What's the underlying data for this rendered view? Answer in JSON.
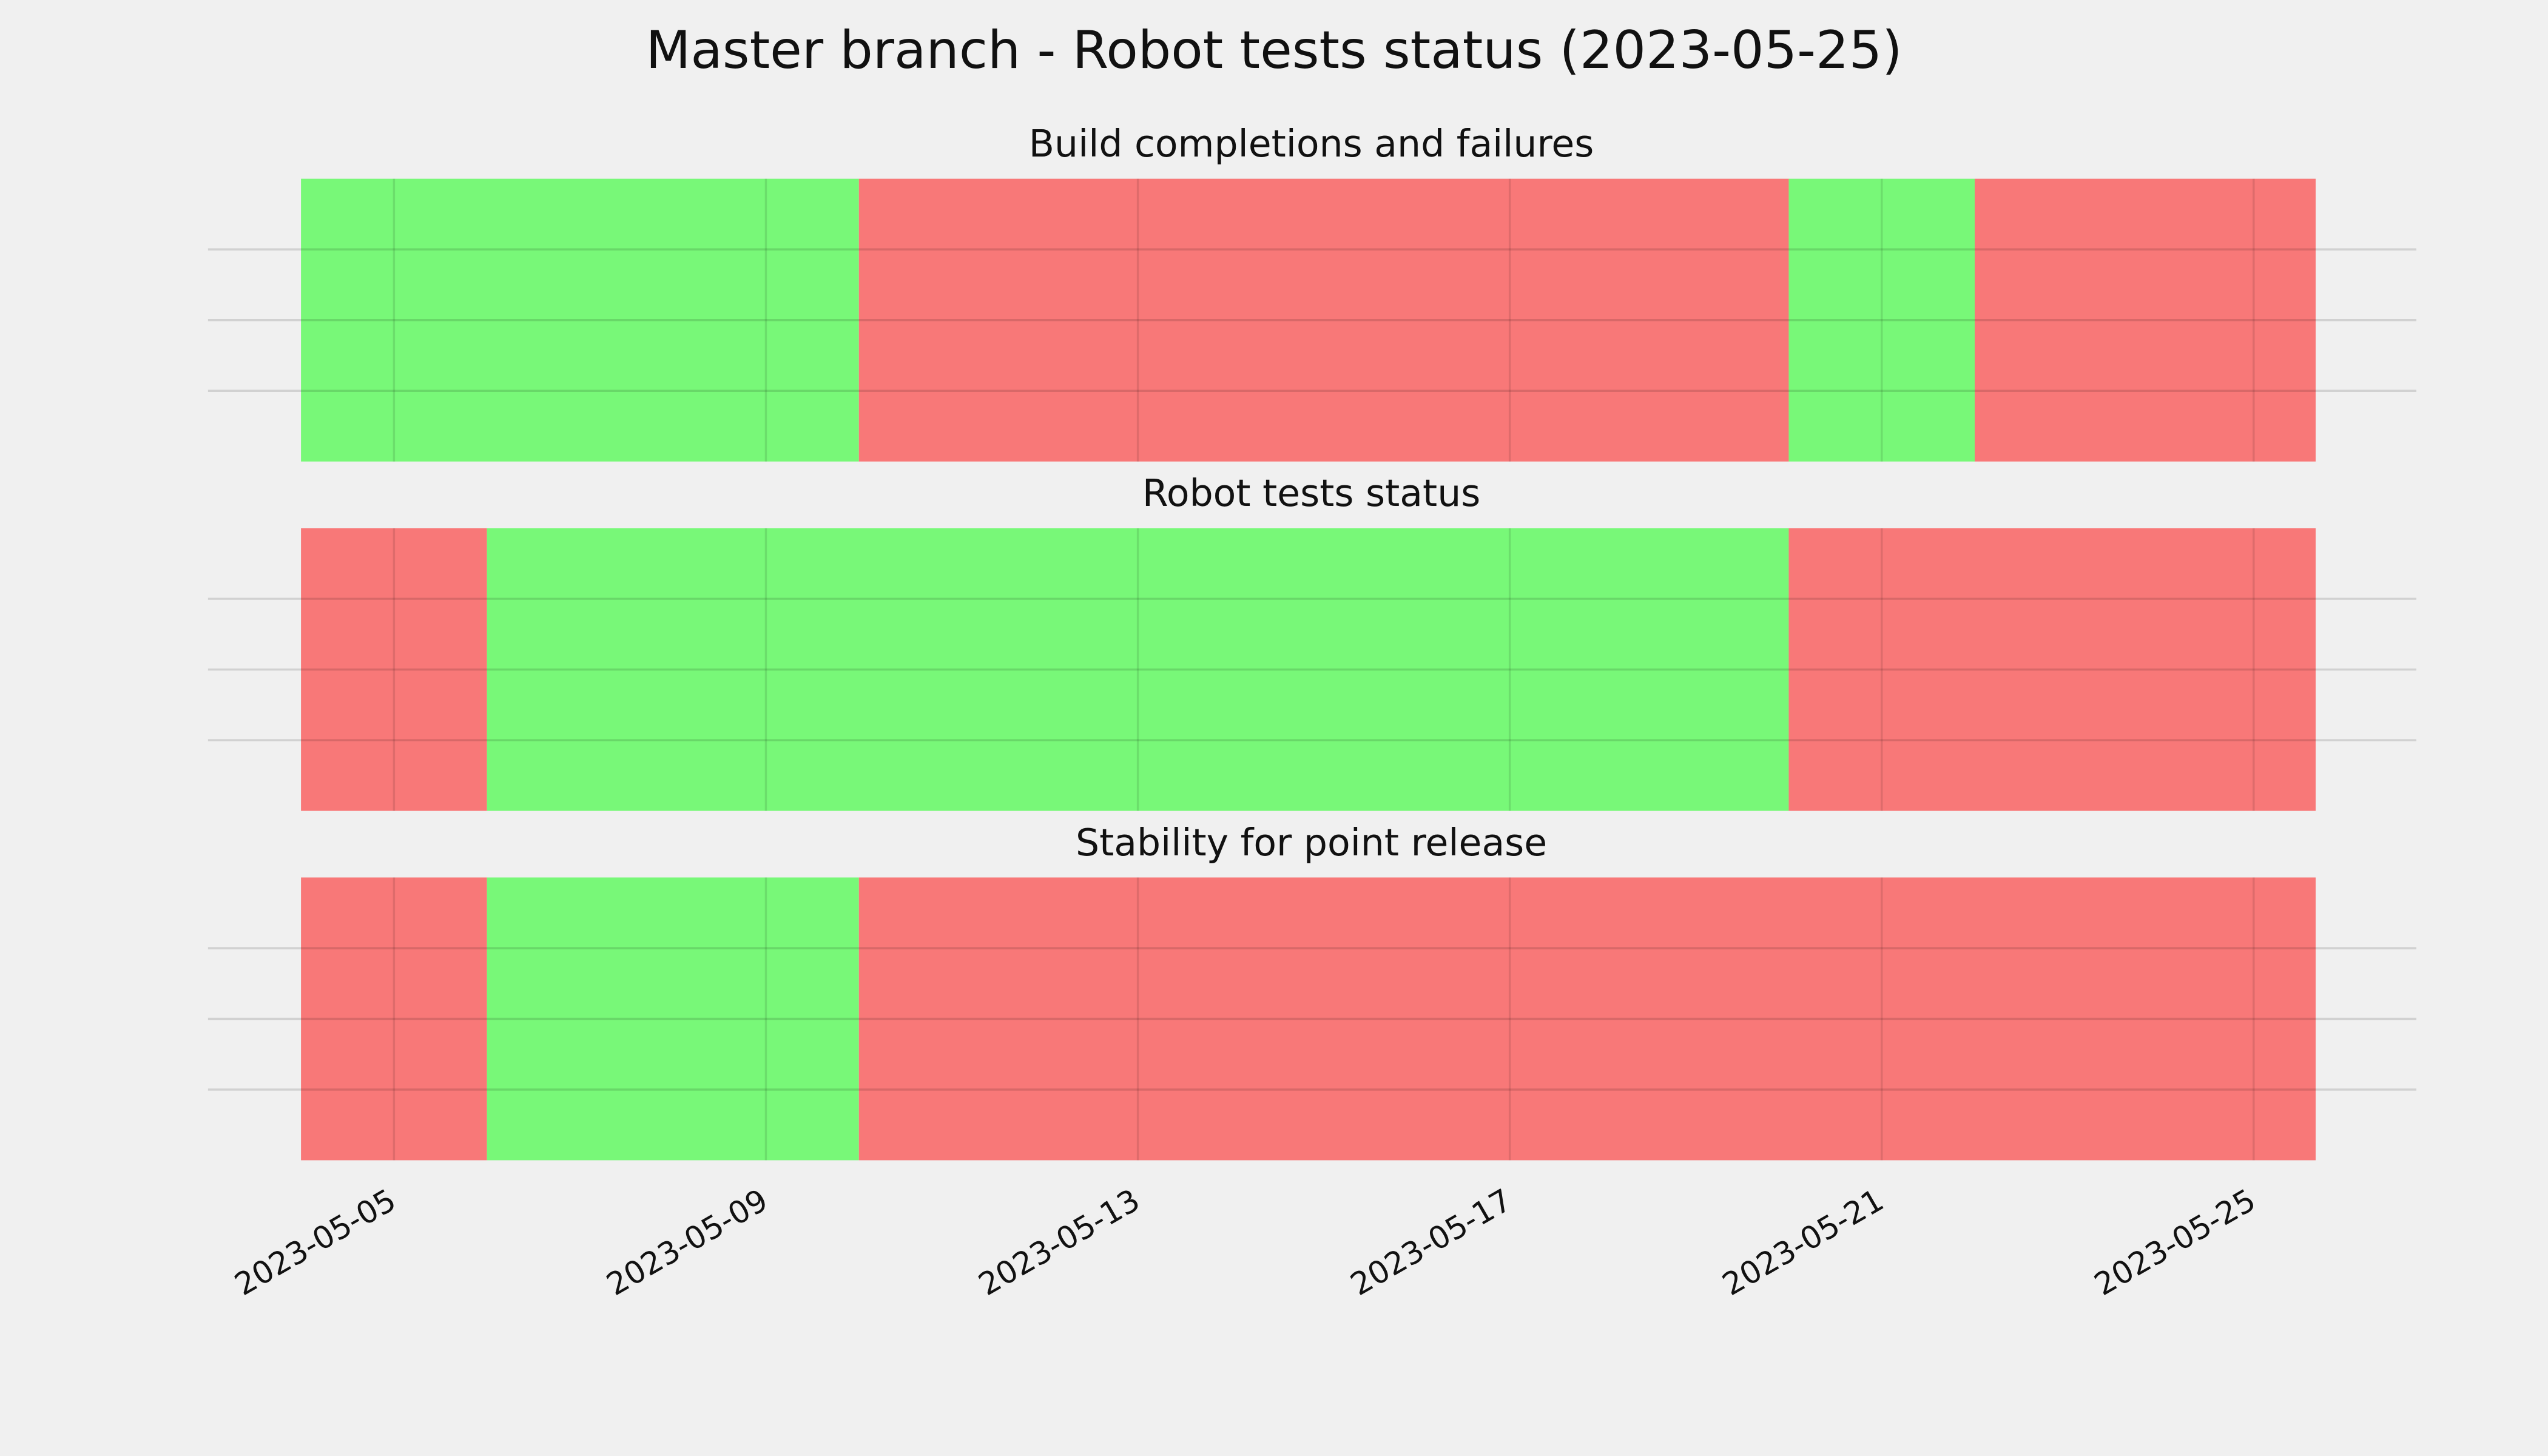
{
  "chart_data": {
    "type": "timeline",
    "title": "Master branch - Robot tests status (2023-05-25)",
    "xlim": [
      "2023-05-03",
      "2023-05-26T18:00"
    ],
    "xticks": [
      "2023-05-05",
      "2023-05-09",
      "2023-05-13",
      "2023-05-17",
      "2023-05-21",
      "2023-05-25"
    ],
    "ylim": [
      0,
      1
    ],
    "yticks": [
      0.25,
      0.5,
      0.75
    ],
    "grid": true,
    "panels": [
      {
        "title": "Build completions and failures",
        "segments": [
          {
            "start": "2023-05-04",
            "end": "2023-05-10",
            "color": "#78f878"
          },
          {
            "start": "2023-05-10",
            "end": "2023-05-20",
            "color": "#f87878"
          },
          {
            "start": "2023-05-20",
            "end": "2023-05-22",
            "color": "#78f878"
          },
          {
            "start": "2023-05-22",
            "end": "2023-05-25T16:00",
            "color": "#f87878"
          }
        ]
      },
      {
        "title": "Robot tests status",
        "segments": [
          {
            "start": "2023-05-04",
            "end": "2023-05-06",
            "color": "#f87878"
          },
          {
            "start": "2023-05-06",
            "end": "2023-05-20",
            "color": "#78f878"
          },
          {
            "start": "2023-05-20",
            "end": "2023-05-25T16:00",
            "color": "#f87878"
          }
        ]
      },
      {
        "title": "Stability for point release",
        "segments": [
          {
            "start": "2023-05-04",
            "end": "2023-05-06",
            "color": "#f87878"
          },
          {
            "start": "2023-05-06",
            "end": "2023-05-10",
            "color": "#78f878"
          },
          {
            "start": "2023-05-10",
            "end": "2023-05-25T16:00",
            "color": "#f87878"
          }
        ]
      }
    ]
  }
}
